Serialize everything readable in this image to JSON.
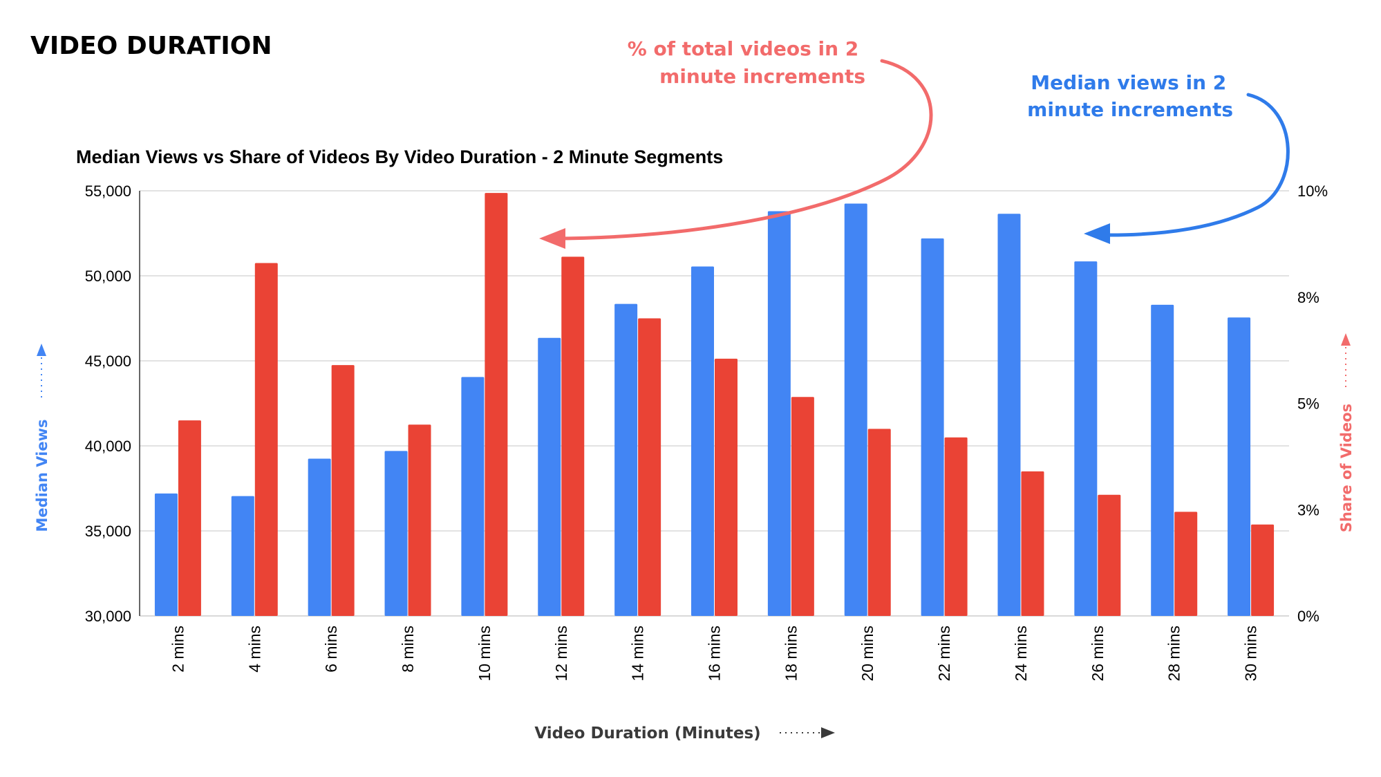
{
  "header": {
    "title": "VIDEO DURATION"
  },
  "annotations": {
    "share_callout": "% of total videos in 2 minute increments",
    "share_callout_lines": [
      "% of total videos in 2",
      "minute increments"
    ],
    "views_callout": "Median views in 2 minute increments",
    "views_callout_lines": [
      "Median views in 2",
      "minute increments"
    ]
  },
  "colors": {
    "median_views": "#4285F4",
    "share_of_videos": "#EA4335",
    "share_callout": "#F26B6B",
    "views_callout": "#2F7BEA",
    "gridline": "#D9D9D9",
    "text": "#000000",
    "axis_title_x": "#3A3A3A"
  },
  "chart_data": {
    "type": "bar",
    "title": "Median Views vs Share of Videos By Video Duration - 2 Minute Segments",
    "xlabel": "Video Duration (Minutes)",
    "ylabel": "Median Views",
    "y2label": "Share of Videos",
    "categories": [
      "2 mins",
      "4 mins",
      "6 mins",
      "8 mins",
      "10 mins",
      "12 mins",
      "14 mins",
      "16 mins",
      "18 mins",
      "20 mins",
      "22 mins",
      "24 mins",
      "26 mins",
      "28 mins",
      "30 mins"
    ],
    "ylim": [
      30000,
      55000
    ],
    "yticks": [
      30000,
      35000,
      40000,
      45000,
      50000,
      55000
    ],
    "ytick_labels": [
      "30,000",
      "35,000",
      "40,000",
      "45,000",
      "50,000",
      "55,000"
    ],
    "y2lim": [
      0,
      10
    ],
    "y2ticks": [
      0,
      2.5,
      5,
      7.5,
      10
    ],
    "y2tick_labels": [
      "0%",
      "3%",
      "5%",
      "8%",
      "10%"
    ],
    "grid": true,
    "series": [
      {
        "name": "Median Views",
        "axis": "left",
        "values": [
          37200,
          37050,
          39250,
          39700,
          44050,
          46350,
          48350,
          50550,
          53800,
          54250,
          52200,
          53650,
          50850,
          48300,
          47550
        ]
      },
      {
        "name": "Share of Videos",
        "axis": "right",
        "values": [
          4.6,
          8.3,
          5.9,
          4.5,
          9.95,
          8.45,
          7.0,
          6.05,
          5.15,
          4.4,
          4.2,
          3.4,
          2.85,
          2.45,
          2.15
        ]
      }
    ]
  }
}
